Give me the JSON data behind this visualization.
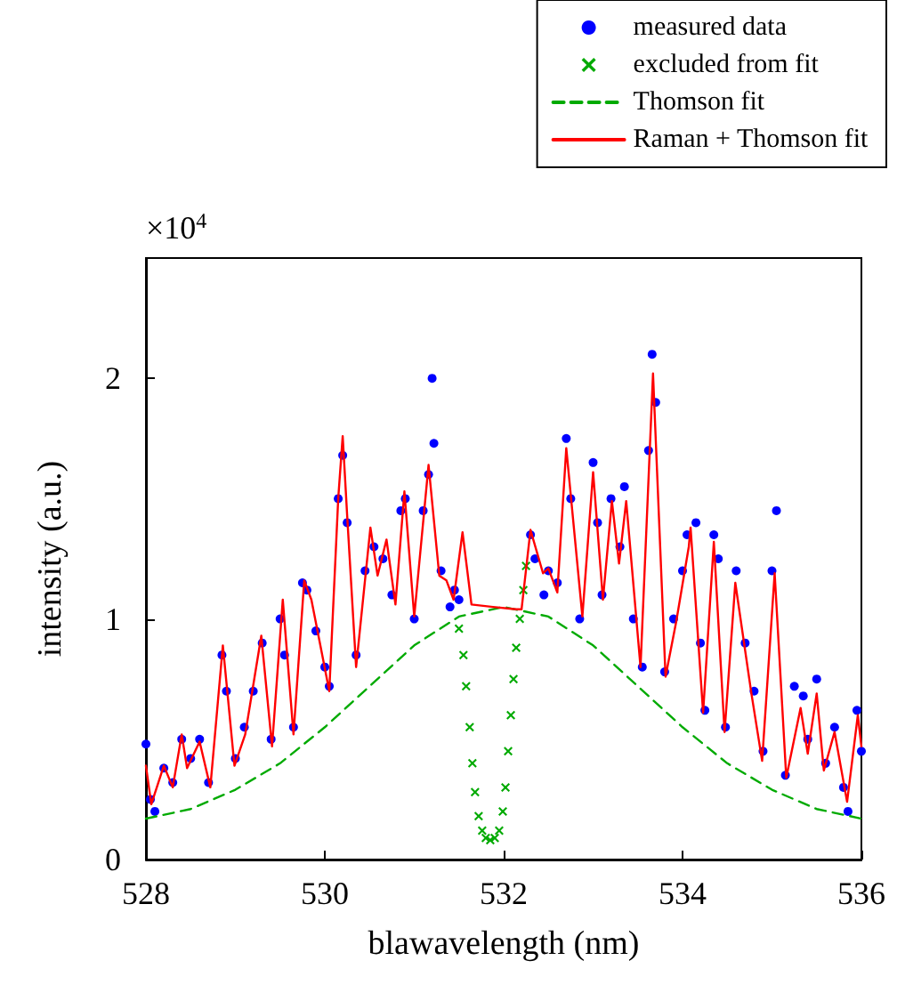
{
  "chart_data": {
    "type": "scatter",
    "xlabel": "blawavelength (nm)",
    "ylabel": "intensity (a.u.)",
    "annotations": [
      "×10$^{4}$"
    ],
    "xlim": [
      528,
      536
    ],
    "xticks": [
      528,
      530,
      532,
      534,
      536
    ],
    "ylim": [
      0,
      2.5
    ],
    "yticks": [
      0,
      1,
      2
    ],
    "grid": false,
    "legend": "top right",
    "series": [
      {
        "name": "measured data",
        "marker": "circle",
        "color": "#0000ff",
        "x": [
          528.0,
          528.05,
          528.1,
          528.2,
          528.3,
          528.4,
          528.5,
          528.6,
          528.7,
          528.85,
          528.9,
          529.0,
          529.1,
          529.2,
          529.3,
          529.4,
          529.5,
          529.55,
          529.65,
          529.75,
          529.8,
          529.9,
          530.0,
          530.05,
          530.15,
          530.2,
          530.25,
          530.35,
          530.45,
          530.55,
          530.65,
          530.75,
          530.85,
          530.9,
          531.0,
          531.1,
          531.16,
          531.2,
          531.22,
          531.3,
          531.4,
          531.45,
          531.5,
          532.3,
          532.35,
          532.45,
          532.5,
          532.6,
          532.7,
          532.75,
          532.85,
          533.0,
          533.05,
          533.1,
          533.2,
          533.3,
          533.35,
          533.45,
          533.55,
          533.62,
          533.66,
          533.7,
          533.8,
          533.9,
          534.0,
          534.05,
          534.15,
          534.2,
          534.25,
          534.35,
          534.4,
          534.48,
          534.6,
          534.7,
          534.8,
          534.9,
          535.0,
          535.05,
          535.15,
          535.25,
          535.35,
          535.4,
          535.5,
          535.6,
          535.7,
          535.8,
          535.85,
          535.95,
          536.0
        ],
        "values": [
          0.48,
          0.25,
          0.2,
          0.38,
          0.32,
          0.5,
          0.42,
          0.5,
          0.32,
          0.85,
          0.7,
          0.42,
          0.55,
          0.7,
          0.9,
          0.5,
          1.0,
          0.85,
          0.55,
          1.15,
          1.12,
          0.95,
          0.8,
          0.72,
          1.5,
          1.68,
          1.4,
          0.85,
          1.2,
          1.3,
          1.25,
          1.1,
          1.45,
          1.5,
          1.0,
          1.45,
          1.6,
          2.0,
          1.73,
          1.2,
          1.05,
          1.12,
          1.08,
          1.35,
          1.25,
          1.1,
          1.2,
          1.15,
          1.75,
          1.5,
          1.0,
          1.65,
          1.4,
          1.1,
          1.5,
          1.3,
          1.55,
          1.0,
          0.8,
          1.7,
          2.1,
          1.9,
          0.78,
          1.0,
          1.2,
          1.35,
          1.4,
          0.9,
          0.62,
          1.35,
          1.25,
          0.55,
          1.2,
          0.9,
          0.7,
          0.45,
          1.2,
          1.45,
          0.35,
          0.72,
          0.68,
          0.5,
          0.75,
          0.4,
          0.55,
          0.3,
          0.2,
          0.62,
          0.45
        ]
      },
      {
        "name": "excluded from fit",
        "marker": "cross",
        "color": "#00aa00",
        "x": [
          531.5,
          531.55,
          531.58,
          531.62,
          531.65,
          531.68,
          531.72,
          531.76,
          531.8,
          531.85,
          531.9,
          531.95,
          531.99,
          532.02,
          532.05,
          532.08,
          532.11,
          532.14,
          532.18,
          532.22,
          532.25
        ],
        "values": [
          0.96,
          0.85,
          0.72,
          0.55,
          0.4,
          0.28,
          0.18,
          0.12,
          0.09,
          0.08,
          0.09,
          0.12,
          0.2,
          0.3,
          0.45,
          0.6,
          0.75,
          0.88,
          1.0,
          1.12,
          1.22
        ]
      },
      {
        "name": "Thomson fit",
        "type": "line",
        "marker": "none",
        "line_style": "dashed",
        "color": "#00aa00",
        "x": [
          528,
          528.5,
          529,
          529.5,
          530,
          530.5,
          531,
          531.5,
          532,
          532.5,
          533,
          533.5,
          534,
          534.5,
          535,
          535.5,
          536
        ],
        "values": [
          0.17,
          0.21,
          0.29,
          0.4,
          0.55,
          0.72,
          0.89,
          1.01,
          1.05,
          1.01,
          0.89,
          0.72,
          0.55,
          0.4,
          0.29,
          0.21,
          0.17
        ]
      },
      {
        "name": "Raman + Thomson fit",
        "type": "line",
        "marker": "none",
        "line_style": "solid",
        "color": "#ff0000",
        "x": [
          528.0,
          528.06,
          528.2,
          528.3,
          528.4,
          528.46,
          528.6,
          528.72,
          528.86,
          528.99,
          529.11,
          529.29,
          529.41,
          529.53,
          529.65,
          529.77,
          529.85,
          529.95,
          530.05,
          530.15,
          530.2,
          530.25,
          530.35,
          530.51,
          530.59,
          530.69,
          530.79,
          530.89,
          531.0,
          531.16,
          531.28,
          531.36,
          531.44,
          531.54,
          531.64,
          531.88,
          532.14,
          532.2,
          532.3,
          532.44,
          532.5,
          532.6,
          532.7,
          532.88,
          533.0,
          533.11,
          533.21,
          533.29,
          533.37,
          533.53,
          533.67,
          533.81,
          533.93,
          534.07,
          534.09,
          534.23,
          534.35,
          534.47,
          534.59,
          534.77,
          534.89,
          535.03,
          535.16,
          535.32,
          535.4,
          535.5,
          535.58,
          535.7,
          535.84,
          535.96,
          536.0
        ],
        "values": [
          0.39,
          0.23,
          0.39,
          0.3,
          0.52,
          0.38,
          0.49,
          0.3,
          0.89,
          0.39,
          0.52,
          0.93,
          0.47,
          1.08,
          0.52,
          1.16,
          1.08,
          0.89,
          0.7,
          1.5,
          1.76,
          1.43,
          0.8,
          1.38,
          1.18,
          1.33,
          1.06,
          1.53,
          1.01,
          1.64,
          1.18,
          1.16,
          1.08,
          1.36,
          1.06,
          1.05,
          1.04,
          1.04,
          1.37,
          1.19,
          1.21,
          1.11,
          1.71,
          1.01,
          1.61,
          1.08,
          1.49,
          1.23,
          1.49,
          0.8,
          2.02,
          0.76,
          0.99,
          1.3,
          1.38,
          0.61,
          1.32,
          0.53,
          1.15,
          0.69,
          0.41,
          1.19,
          0.34,
          0.63,
          0.44,
          0.69,
          0.37,
          0.53,
          0.24,
          0.6,
          0.47
        ]
      }
    ]
  }
}
